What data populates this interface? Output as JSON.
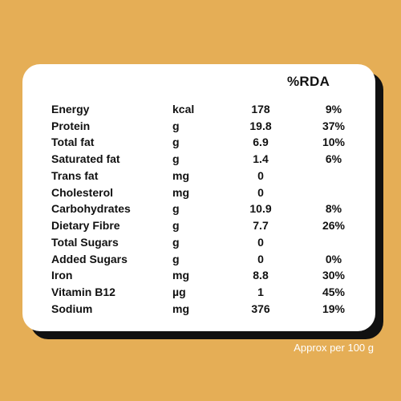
{
  "header": {
    "rda_label": "%RDA"
  },
  "rows": [
    {
      "name": "Energy",
      "unit": "kcal",
      "value": "178",
      "rda": "9%"
    },
    {
      "name": "Protein",
      "unit": "g",
      "value": "19.8",
      "rda": "37%"
    },
    {
      "name": "Total fat",
      "unit": "g",
      "value": "6.9",
      "rda": "10%"
    },
    {
      "name": "Saturated fat",
      "unit": "g",
      "value": "1.4",
      "rda": "6%"
    },
    {
      "name": "Trans fat",
      "unit": "mg",
      "value": "0",
      "rda": ""
    },
    {
      "name": "Cholesterol",
      "unit": "mg",
      "value": "0",
      "rda": ""
    },
    {
      "name": "Carbohydrates",
      "unit": "g",
      "value": "10.9",
      "rda": "8%"
    },
    {
      "name": "Dietary Fibre",
      "unit": "g",
      "value": "7.7",
      "rda": "26%"
    },
    {
      "name": "Total Sugars",
      "unit": "g",
      "value": "0",
      "rda": ""
    },
    {
      "name": "Added Sugars",
      "unit": "g",
      "value": "0",
      "rda": "0%"
    },
    {
      "name": "Iron",
      "unit": "mg",
      "value": "8.8",
      "rda": "30%"
    },
    {
      "name": "Vitamin B12",
      "unit": "µg",
      "value": "1",
      "rda": "45%"
    },
    {
      "name": "Sodium",
      "unit": "mg",
      "value": "376",
      "rda": "19%"
    }
  ],
  "footnote": "Approx per 100 g",
  "colors": {
    "background": "#E5AE56",
    "card": "#FFFFFF",
    "card_shadow": "#111111",
    "text": "#111111"
  }
}
